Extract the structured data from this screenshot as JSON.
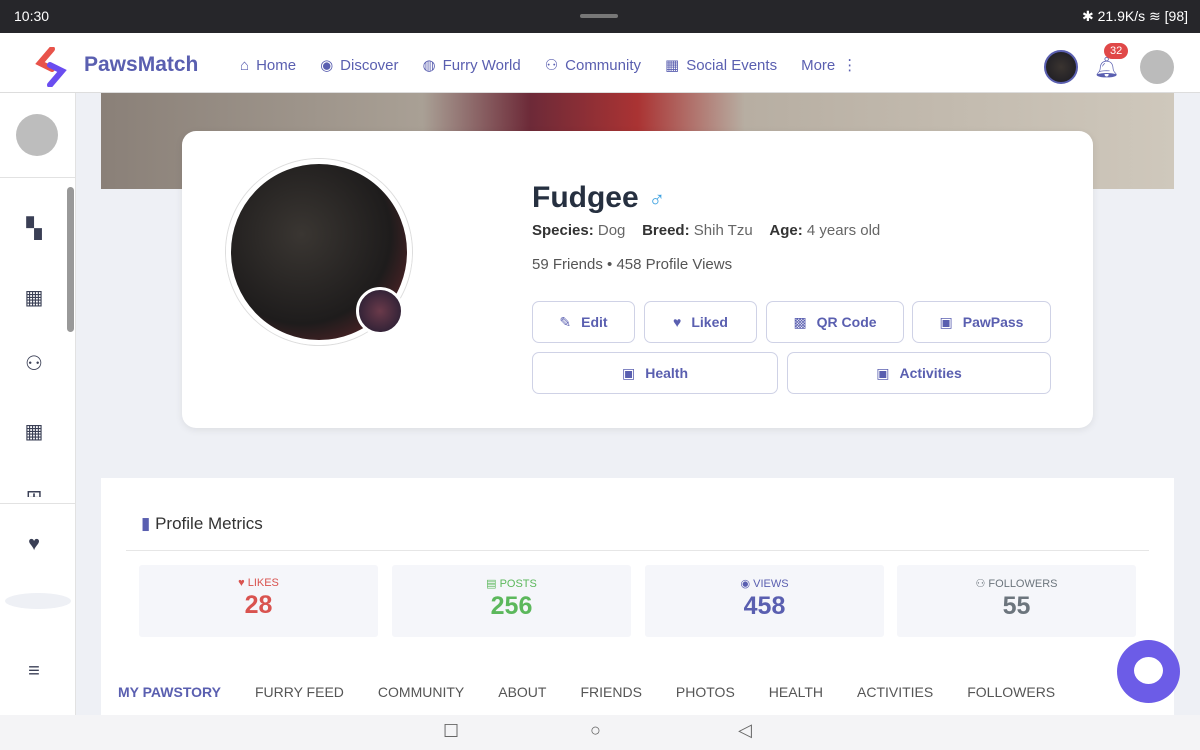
{
  "status_bar": {
    "time": "10:30",
    "network": "21.9K/s",
    "battery": "98"
  },
  "nav": {
    "brand": "PawsMatch",
    "items": [
      {
        "label": "Home",
        "icon": "home-icon"
      },
      {
        "label": "Discover",
        "icon": "compass-icon"
      },
      {
        "label": "Furry World",
        "icon": "globe-icon"
      },
      {
        "label": "Community",
        "icon": "people-icon"
      },
      {
        "label": "Social Events",
        "icon": "calendar-icon"
      },
      {
        "label": "More",
        "icon": "kebab-icon"
      }
    ],
    "notifications": "32"
  },
  "profile": {
    "name": "Fudgee",
    "gender": "♂",
    "species_label": "Species:",
    "species": "Dog",
    "breed_label": "Breed:",
    "breed": "Shih Tzu",
    "age_label": "Age:",
    "age": "4 years old",
    "friends_line": "59 Friends • 458 Profile Views",
    "buttons": [
      "Edit",
      "Liked",
      "QR Code",
      "PawPass",
      "Health",
      "Activities"
    ]
  },
  "metrics": {
    "title": "Profile Metrics",
    "items": [
      {
        "label": "LIKES",
        "value": "28",
        "color": "#d9534f"
      },
      {
        "label": "POSTS",
        "value": "256",
        "color": "#5cb85c"
      },
      {
        "label": "VIEWS",
        "value": "458",
        "color": "#5a5fb0"
      },
      {
        "label": "FOLLOWERS",
        "value": "55",
        "color": "#6c757d"
      }
    ]
  },
  "tabs": [
    "MY PAWSTORY",
    "FURRY FEED",
    "COMMUNITY",
    "ABOUT",
    "FRIENDS",
    "PHOTOS",
    "HEALTH",
    "ACTIVITIES",
    "FOLLOWERS"
  ],
  "accent": "#5a5fb0"
}
